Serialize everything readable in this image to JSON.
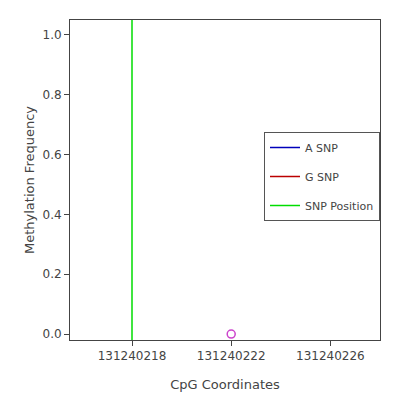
{
  "chart_data": {
    "type": "scatter",
    "xlabel": "CpG Coordinates",
    "ylabel": "Methylation Frequency",
    "xlim": [
      131240215.5,
      131240228
    ],
    "ylim": [
      -0.02,
      1.05
    ],
    "xticks": [
      131240218,
      131240222,
      131240226
    ],
    "yticks": [
      {
        "value": 0.0,
        "label": "0.0"
      },
      0.2,
      0.4,
      0.6,
      0.8,
      {
        "value": 1.0,
        "label": "1.0"
      }
    ],
    "grid": false,
    "legend": "right",
    "series": [
      {
        "name": "A SNP",
        "color": "#0000bb",
        "type": "line",
        "line_style": "solid",
        "values": []
      },
      {
        "name": "G SNP",
        "color": "#bb0000",
        "type": "line",
        "line_style": "solid",
        "values": []
      },
      {
        "name": "SNP Position",
        "color": "#00dd00",
        "type": "vline",
        "line_style": "solid",
        "x": [
          131240218
        ]
      },
      {
        "type": "scatter",
        "color": "#cc44cc",
        "marker": "open circle",
        "x": [
          131240222
        ],
        "values": [
          0.0
        ]
      }
    ]
  }
}
